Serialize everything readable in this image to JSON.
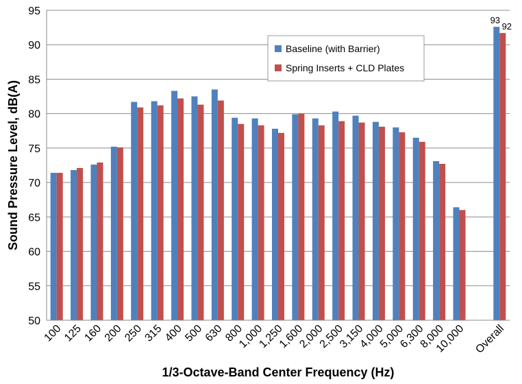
{
  "chart_data": {
    "type": "bar",
    "title": "",
    "xlabel": "1/3-Octave-Band Center Frequency (Hz)",
    "ylabel": "Sound Pressure Level, dB(A)",
    "ylim": [
      50,
      95
    ],
    "yticks": [
      "50",
      "55",
      "60",
      "65",
      "70",
      "75",
      "80",
      "85",
      "90",
      "95"
    ],
    "grid": true,
    "legend_position": "top-right",
    "categories": [
      "100",
      "125",
      "160",
      "200",
      "250",
      "315",
      "400",
      "500",
      "630",
      "800",
      "1,000",
      "1,250",
      "1,600",
      "2,000",
      "2,500",
      "3,150",
      "4,000",
      "5,000",
      "6,300",
      "8,000",
      "10,000",
      "",
      "Overall"
    ],
    "series": [
      {
        "name": "Baseline (with Barrier)",
        "color": "#4f81bd",
        "values": [
          71.4,
          71.8,
          72.6,
          75.2,
          81.7,
          81.8,
          83.3,
          82.5,
          83.5,
          79.4,
          79.3,
          77.8,
          79.9,
          79.3,
          80.3,
          79.7,
          78.8,
          78.0,
          76.5,
          73.1,
          66.4,
          null,
          92.6
        ]
      },
      {
        "name": "Spring Inserts + CLD Plates",
        "color": "#c0504d",
        "values": [
          71.4,
          72.1,
          72.9,
          75.1,
          80.9,
          81.2,
          82.2,
          81.3,
          81.9,
          78.5,
          78.3,
          77.2,
          80.0,
          78.3,
          78.9,
          78.7,
          78.1,
          77.3,
          75.9,
          72.7,
          66.0,
          null,
          91.7
        ]
      }
    ],
    "data_labels": [
      {
        "category": "Overall",
        "series": "Baseline (with Barrier)",
        "text": "93"
      },
      {
        "category": "Overall",
        "series": "Spring Inserts + CLD Plates",
        "text": "92"
      }
    ]
  }
}
